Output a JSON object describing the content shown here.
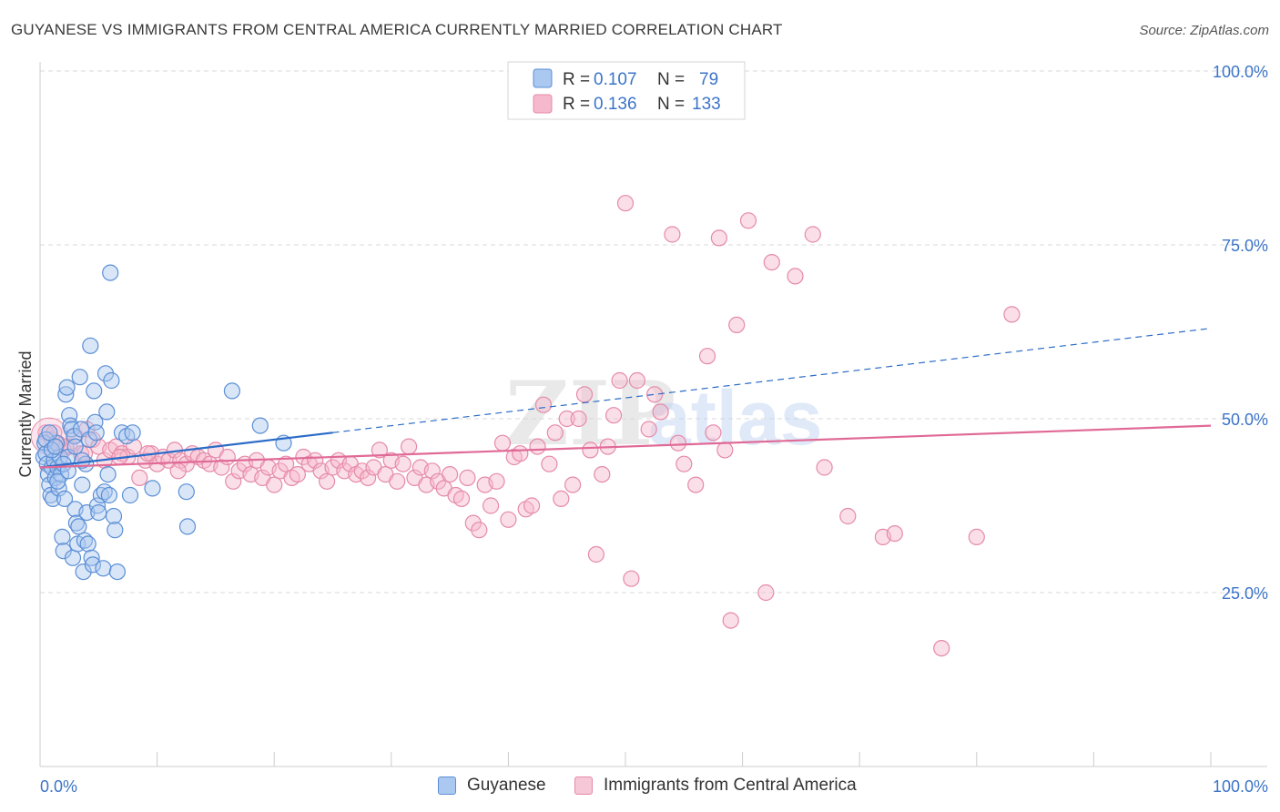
{
  "title": "GUYANESE VS IMMIGRANTS FROM CENTRAL AMERICA CURRENTLY MARRIED CORRELATION CHART",
  "source": "Source: ZipAtlas.com",
  "watermark": {
    "zip": "ZIP",
    "atlas": "atlas"
  },
  "colors": {
    "blue_fill": "#aac8f0",
    "blue_stroke": "#5b8fd6",
    "blue_line": "#2b6cc8",
    "pink_fill": "#f6b8cc",
    "pink_stroke": "#e58aa8",
    "pink_line": "#e06a96",
    "axis_label": "#3b74c8",
    "grid": "#d9d9d9"
  },
  "legend": {
    "rows": [
      {
        "r_label": "R =",
        "r_value": "0.107",
        "n_label": "N =",
        "n_value": "79",
        "series": "blue"
      },
      {
        "r_label": "R =",
        "r_value": "0.136",
        "n_label": "N =",
        "n_value": "133",
        "series": "pink"
      }
    ]
  },
  "bottom_legend": [
    {
      "label": "Guyanese",
      "series": "blue"
    },
    {
      "label": "Immigrants from Central America",
      "series": "pink"
    }
  ],
  "chart_data": {
    "type": "scatter",
    "title": "GUYANESE VS IMMIGRANTS FROM CENTRAL AMERICA CURRENTLY MARRIED CORRELATION CHART",
    "xlabel": "",
    "ylabel": "Currently Married",
    "xlim": [
      0,
      100
    ],
    "ylim": [
      0,
      102
    ],
    "x_tick_labels": [
      "0.0%",
      "100.0%"
    ],
    "y_tick_labels": [
      "25.0%",
      "50.0%",
      "75.0%",
      "100.0%"
    ],
    "y_ticks": [
      25,
      50,
      75,
      100
    ],
    "grid": true,
    "legend_position": "top-center",
    "series": [
      {
        "name": "Guyanese",
        "color": "#5b8fd6",
        "trend": {
          "x_start": 0,
          "y_start": 43.0,
          "x_end_solid": 25,
          "x_end": 100,
          "y_end": 63.0
        },
        "points": [
          [
            0.3,
            44.5
          ],
          [
            0.4,
            46.5
          ],
          [
            0.5,
            45.0
          ],
          [
            0.6,
            43.5
          ],
          [
            0.7,
            42.0
          ],
          [
            0.8,
            40.5
          ],
          [
            0.9,
            39.0
          ],
          [
            1.0,
            43.0
          ],
          [
            1.1,
            38.5
          ],
          [
            1.2,
            44.0
          ],
          [
            1.3,
            41.5
          ],
          [
            1.4,
            46.5
          ],
          [
            1.5,
            43.0
          ],
          [
            1.6,
            40.0
          ],
          [
            1.7,
            44.5
          ],
          [
            1.8,
            42.0
          ],
          [
            1.9,
            33.0
          ],
          [
            2.0,
            31.0
          ],
          [
            2.1,
            38.5
          ],
          [
            2.2,
            53.5
          ],
          [
            2.3,
            54.5
          ],
          [
            2.4,
            44.5
          ],
          [
            2.5,
            50.5
          ],
          [
            2.6,
            49.0
          ],
          [
            2.7,
            48.5
          ],
          [
            2.8,
            30.0
          ],
          [
            2.9,
            47.5
          ],
          [
            3.0,
            37.0
          ],
          [
            3.1,
            35.0
          ],
          [
            3.2,
            32.0
          ],
          [
            3.3,
            34.5
          ],
          [
            3.4,
            56.0
          ],
          [
            3.5,
            48.5
          ],
          [
            3.6,
            40.5
          ],
          [
            3.7,
            28.0
          ],
          [
            3.8,
            32.5
          ],
          [
            3.9,
            43.5
          ],
          [
            4.0,
            36.5
          ],
          [
            4.1,
            32.0
          ],
          [
            4.2,
            47.0
          ],
          [
            4.3,
            60.5
          ],
          [
            4.4,
            30.0
          ],
          [
            4.5,
            29.0
          ],
          [
            4.6,
            54.0
          ],
          [
            4.7,
            49.5
          ],
          [
            4.8,
            48.0
          ],
          [
            4.9,
            37.5
          ],
          [
            5.0,
            36.5
          ],
          [
            5.2,
            39.0
          ],
          [
            5.4,
            28.5
          ],
          [
            5.5,
            39.5
          ],
          [
            5.6,
            56.5
          ],
          [
            5.7,
            51.0
          ],
          [
            5.8,
            42.0
          ],
          [
            5.9,
            39.0
          ],
          [
            6.0,
            71.0
          ],
          [
            6.1,
            55.5
          ],
          [
            6.3,
            36.0
          ],
          [
            6.4,
            34.0
          ],
          [
            6.6,
            28.0
          ],
          [
            7.0,
            48.0
          ],
          [
            7.4,
            47.5
          ],
          [
            7.7,
            39.0
          ],
          [
            7.9,
            48.0
          ],
          [
            9.6,
            40.0
          ],
          [
            12.5,
            39.5
          ],
          [
            12.6,
            34.5
          ],
          [
            16.4,
            54.0
          ],
          [
            18.8,
            49.0
          ],
          [
            20.8,
            46.5
          ],
          [
            0.5,
            47.0
          ],
          [
            1.0,
            45.5
          ],
          [
            1.5,
            41.0
          ],
          [
            2.0,
            43.5
          ],
          [
            0.8,
            48.0
          ],
          [
            1.3,
            46.0
          ],
          [
            3.0,
            46.0
          ],
          [
            2.4,
            42.5
          ],
          [
            3.6,
            44.0
          ]
        ]
      },
      {
        "name": "Immigrants from Central America",
        "color": "#e58aa8",
        "trend": {
          "x_start": 0,
          "y_start": 43.0,
          "x_end": 100,
          "y_end": 49.0
        },
        "points": [
          [
            0.5,
            48.0
          ],
          [
            1.0,
            47.0
          ],
          [
            1.5,
            46.5
          ],
          [
            2.0,
            45.5
          ],
          [
            2.5,
            46.0
          ],
          [
            3.0,
            47.5
          ],
          [
            3.5,
            45.0
          ],
          [
            4.0,
            48.5
          ],
          [
            4.5,
            47.0
          ],
          [
            5.0,
            46.0
          ],
          [
            5.5,
            44.0
          ],
          [
            6.0,
            45.5
          ],
          [
            6.5,
            46.0
          ],
          [
            7.0,
            45.0
          ],
          [
            7.5,
            44.5
          ],
          [
            8.0,
            46.0
          ],
          [
            8.5,
            41.5
          ],
          [
            9.0,
            44.0
          ],
          [
            9.5,
            45.0
          ],
          [
            10.0,
            43.5
          ],
          [
            10.5,
            44.5
          ],
          [
            11.0,
            44.0
          ],
          [
            11.5,
            45.5
          ],
          [
            12.0,
            44.0
          ],
          [
            12.5,
            43.5
          ],
          [
            13.0,
            45.0
          ],
          [
            13.5,
            44.5
          ],
          [
            14.0,
            44.0
          ],
          [
            14.5,
            43.5
          ],
          [
            15.0,
            45.5
          ],
          [
            15.5,
            43.0
          ],
          [
            16.0,
            44.5
          ],
          [
            16.5,
            41.0
          ],
          [
            17.0,
            42.5
          ],
          [
            17.5,
            43.5
          ],
          [
            18.0,
            42.0
          ],
          [
            18.5,
            44.0
          ],
          [
            19.0,
            41.5
          ],
          [
            19.5,
            43.0
          ],
          [
            20.0,
            40.5
          ],
          [
            20.5,
            42.5
          ],
          [
            21.0,
            43.5
          ],
          [
            21.5,
            41.5
          ],
          [
            22.0,
            42.0
          ],
          [
            22.5,
            44.5
          ],
          [
            23.0,
            43.5
          ],
          [
            23.5,
            44.0
          ],
          [
            24.0,
            42.5
          ],
          [
            24.5,
            41.0
          ],
          [
            25.0,
            43.0
          ],
          [
            25.5,
            44.0
          ],
          [
            26.0,
            42.5
          ],
          [
            26.5,
            43.5
          ],
          [
            27.0,
            42.0
          ],
          [
            27.5,
            42.5
          ],
          [
            28.0,
            41.5
          ],
          [
            28.5,
            43.0
          ],
          [
            29.0,
            45.5
          ],
          [
            29.5,
            42.0
          ],
          [
            30.0,
            44.0
          ],
          [
            30.5,
            41.0
          ],
          [
            31.0,
            43.5
          ],
          [
            31.5,
            46.0
          ],
          [
            32.0,
            41.5
          ],
          [
            32.5,
            43.0
          ],
          [
            33.0,
            40.5
          ],
          [
            33.5,
            42.5
          ],
          [
            34.0,
            41.0
          ],
          [
            34.5,
            40.0
          ],
          [
            35.0,
            42.0
          ],
          [
            35.5,
            39.0
          ],
          [
            36.0,
            38.5
          ],
          [
            36.5,
            41.5
          ],
          [
            37.0,
            35.0
          ],
          [
            37.5,
            34.0
          ],
          [
            38.0,
            40.5
          ],
          [
            38.5,
            37.5
          ],
          [
            39.0,
            41.0
          ],
          [
            39.5,
            46.5
          ],
          [
            40.0,
            35.5
          ],
          [
            40.5,
            44.5
          ],
          [
            41.0,
            45.0
          ],
          [
            41.5,
            37.0
          ],
          [
            42.0,
            37.5
          ],
          [
            42.5,
            46.0
          ],
          [
            43.0,
            52.0
          ],
          [
            43.5,
            43.5
          ],
          [
            44.0,
            48.0
          ],
          [
            44.5,
            38.5
          ],
          [
            45.0,
            50.0
          ],
          [
            45.5,
            40.5
          ],
          [
            46.0,
            50.0
          ],
          [
            46.5,
            53.5
          ],
          [
            47.0,
            45.5
          ],
          [
            47.5,
            30.5
          ],
          [
            48.0,
            42.0
          ],
          [
            48.5,
            46.0
          ],
          [
            49.0,
            50.5
          ],
          [
            49.5,
            55.5
          ],
          [
            50.0,
            81.0
          ],
          [
            50.5,
            27.0
          ],
          [
            51.0,
            55.5
          ],
          [
            52.0,
            48.5
          ],
          [
            52.5,
            53.5
          ],
          [
            53.0,
            51.0
          ],
          [
            54.0,
            76.5
          ],
          [
            54.5,
            46.5
          ],
          [
            55.0,
            43.5
          ],
          [
            56.0,
            40.5
          ],
          [
            57.0,
            59.0
          ],
          [
            57.5,
            48.0
          ],
          [
            58.0,
            76.0
          ],
          [
            58.5,
            45.5
          ],
          [
            59.0,
            21.0
          ],
          [
            59.5,
            63.5
          ],
          [
            60.5,
            78.5
          ],
          [
            62.0,
            25.0
          ],
          [
            62.5,
            72.5
          ],
          [
            64.5,
            70.5
          ],
          [
            66.0,
            76.5
          ],
          [
            67.0,
            43.0
          ],
          [
            69.0,
            36.0
          ],
          [
            72.0,
            33.0
          ],
          [
            73.0,
            33.5
          ],
          [
            77.0,
            17.0
          ],
          [
            80.0,
            33.0
          ],
          [
            83.0,
            65.0
          ],
          [
            2.2,
            46.0
          ],
          [
            1.2,
            48.0
          ],
          [
            3.8,
            45.0
          ],
          [
            6.8,
            44.5
          ],
          [
            9.2,
            45.0
          ],
          [
            11.8,
            42.5
          ]
        ]
      }
    ]
  }
}
